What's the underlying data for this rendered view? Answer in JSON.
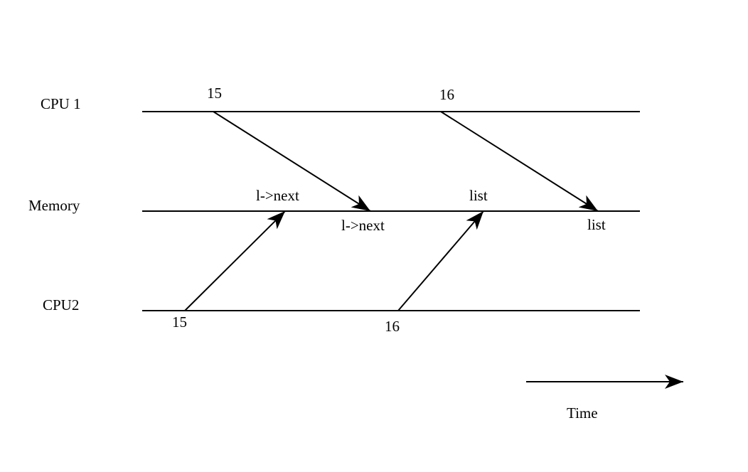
{
  "lanes": [
    {
      "id": "cpu1",
      "label": "CPU 1"
    },
    {
      "id": "memory",
      "label": "Memory"
    },
    {
      "id": "cpu2",
      "label": "CPU2"
    }
  ],
  "messages": [
    {
      "id": "cpu1-15",
      "from": "cpu1",
      "to": "memory",
      "start_label": "15",
      "end_label": "l->next"
    },
    {
      "id": "cpu1-16",
      "from": "cpu1",
      "to": "memory",
      "start_label": "16",
      "end_label": "list"
    },
    {
      "id": "cpu2-15",
      "from": "cpu2",
      "to": "memory",
      "start_label": "15",
      "end_label": "l->next"
    },
    {
      "id": "cpu2-16",
      "from": "cpu2",
      "to": "memory",
      "start_label": "16",
      "end_label": "list"
    }
  ],
  "time_axis": {
    "label": "Time"
  },
  "colors": {
    "line": "#000000",
    "background": "#ffffff"
  }
}
